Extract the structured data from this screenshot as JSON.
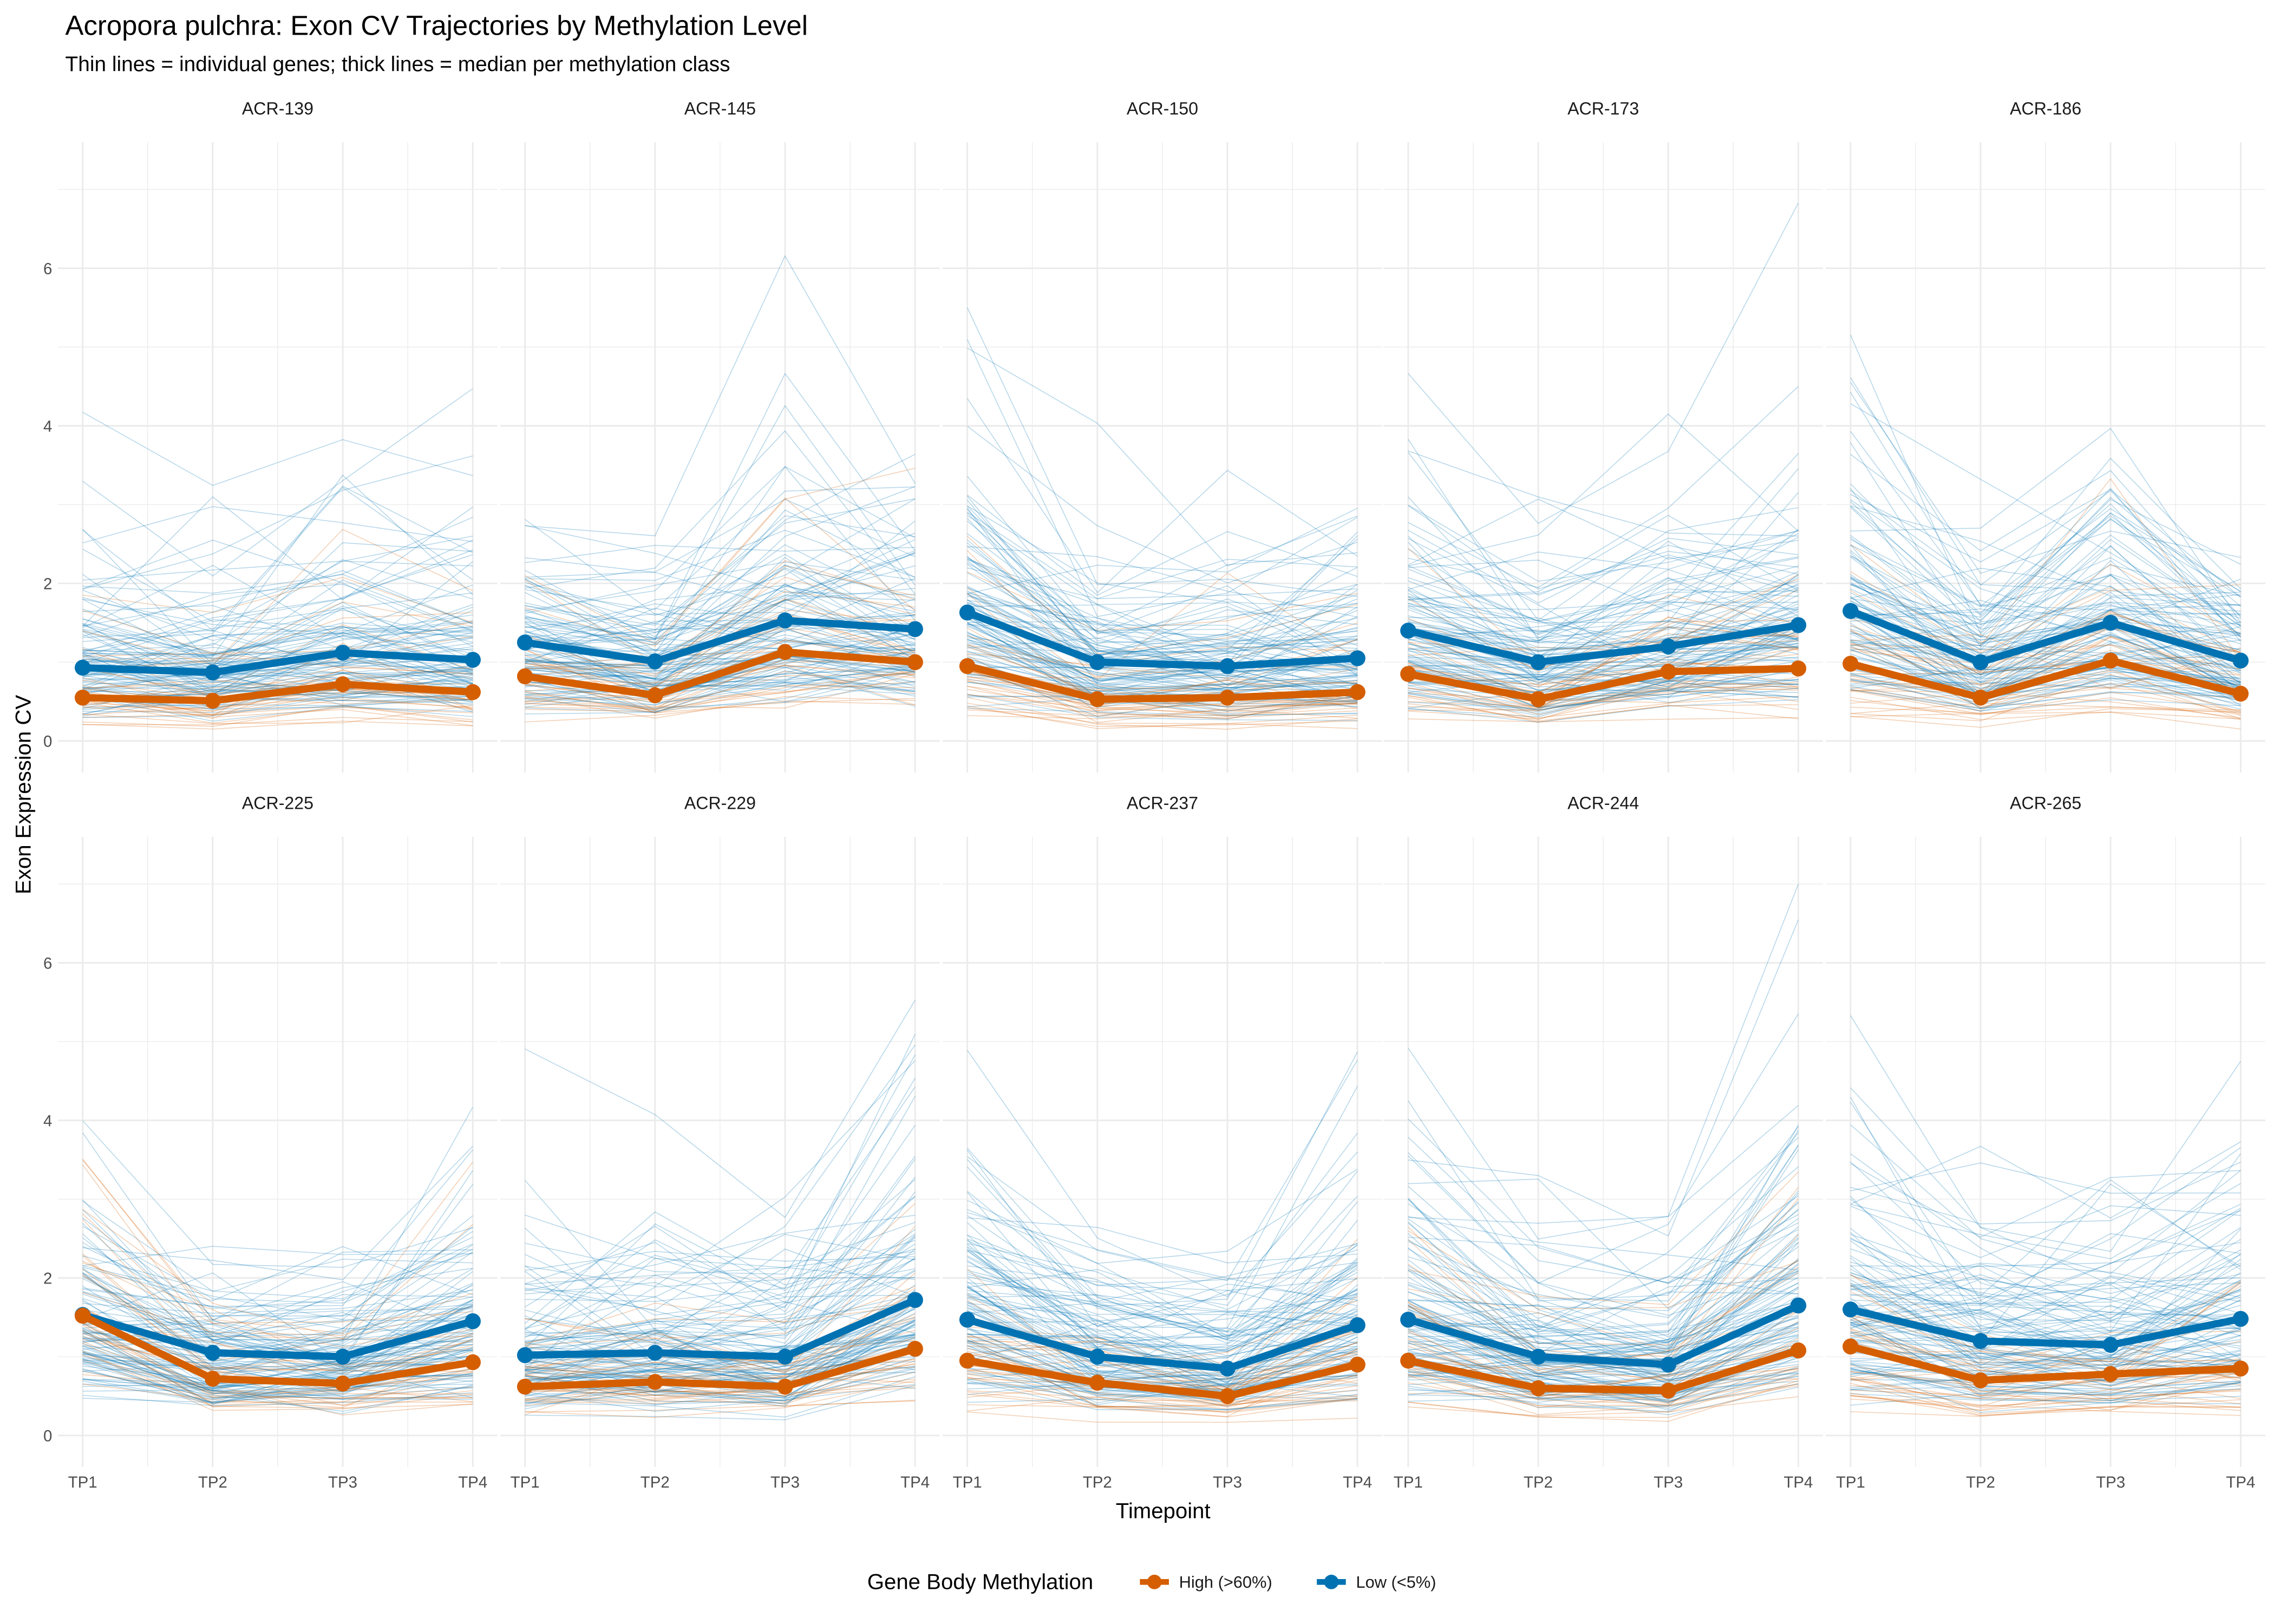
{
  "chart_data": {
    "type": "line",
    "title": "Acropora pulchra: Exon CV Trajectories by Methylation Level",
    "subtitle": "Thin lines = individual genes; thick lines = median per methylation class",
    "xlabel": "Timepoint",
    "ylabel": "Exon Expression CV",
    "x": [
      "TP1",
      "TP2",
      "TP3",
      "TP4"
    ],
    "yticks": [
      0,
      2,
      4,
      6
    ],
    "ylim": [
      -0.4,
      7.6
    ],
    "grid": true,
    "legend": {
      "title": "Gene Body Methylation",
      "position": "bottom",
      "entries": [
        {
          "name": "High (>60%)",
          "color": "#D55E00"
        },
        {
          "name": "Low (<5%)",
          "color": "#0072B2"
        }
      ]
    },
    "colors": {
      "high": "#D55E00",
      "low": "#0072B2"
    },
    "panels": [
      {
        "label": "ACR-139",
        "series": [
          {
            "name": "High (>60%)",
            "values": [
              0.55,
              0.51,
              0.72,
              0.62
            ]
          },
          {
            "name": "Low (<5%)",
            "values": [
              0.93,
              0.87,
              1.12,
              1.03
            ]
          }
        ]
      },
      {
        "label": "ACR-145",
        "series": [
          {
            "name": "High (>60%)",
            "values": [
              0.82,
              0.58,
              1.13,
              1.0
            ]
          },
          {
            "name": "Low (<5%)",
            "values": [
              1.25,
              1.01,
              1.53,
              1.42
            ]
          }
        ]
      },
      {
        "label": "ACR-150",
        "series": [
          {
            "name": "High (>60%)",
            "values": [
              0.95,
              0.53,
              0.55,
              0.62
            ]
          },
          {
            "name": "Low (<5%)",
            "values": [
              1.63,
              1.0,
              0.95,
              1.05
            ]
          }
        ]
      },
      {
        "label": "ACR-173",
        "series": [
          {
            "name": "High (>60%)",
            "values": [
              0.85,
              0.53,
              0.88,
              0.92
            ]
          },
          {
            "name": "Low (<5%)",
            "values": [
              1.4,
              1.0,
              1.2,
              1.47
            ]
          }
        ]
      },
      {
        "label": "ACR-186",
        "series": [
          {
            "name": "High (>60%)",
            "values": [
              0.98,
              0.55,
              1.02,
              0.6
            ]
          },
          {
            "name": "Low (<5%)",
            "values": [
              1.65,
              1.0,
              1.5,
              1.02
            ]
          }
        ]
      },
      {
        "label": "ACR-225",
        "series": [
          {
            "name": "High (>60%)",
            "values": [
              1.52,
              0.72,
              0.66,
              0.93
            ]
          },
          {
            "name": "Low (<5%)",
            "values": [
              1.53,
              1.05,
              1.0,
              1.45
            ]
          }
        ]
      },
      {
        "label": "ACR-229",
        "series": [
          {
            "name": "High (>60%)",
            "values": [
              0.62,
              0.68,
              0.62,
              1.1
            ]
          },
          {
            "name": "Low (<5%)",
            "values": [
              1.02,
              1.05,
              1.0,
              1.72
            ]
          }
        ]
      },
      {
        "label": "ACR-237",
        "series": [
          {
            "name": "High (>60%)",
            "values": [
              0.95,
              0.67,
              0.5,
              0.9
            ]
          },
          {
            "name": "Low (<5%)",
            "values": [
              1.47,
              1.0,
              0.85,
              1.4
            ]
          }
        ]
      },
      {
        "label": "ACR-244",
        "series": [
          {
            "name": "High (>60%)",
            "values": [
              0.95,
              0.6,
              0.57,
              1.08
            ]
          },
          {
            "name": "Low (<5%)",
            "values": [
              1.47,
              1.0,
              0.9,
              1.65
            ]
          }
        ]
      },
      {
        "label": "ACR-265",
        "series": [
          {
            "name": "High (>60%)",
            "values": [
              1.13,
              0.7,
              0.78,
              0.85
            ]
          },
          {
            "name": "Low (<5%)",
            "values": [
              1.6,
              1.2,
              1.15,
              1.48
            ]
          }
        ]
      }
    ]
  }
}
